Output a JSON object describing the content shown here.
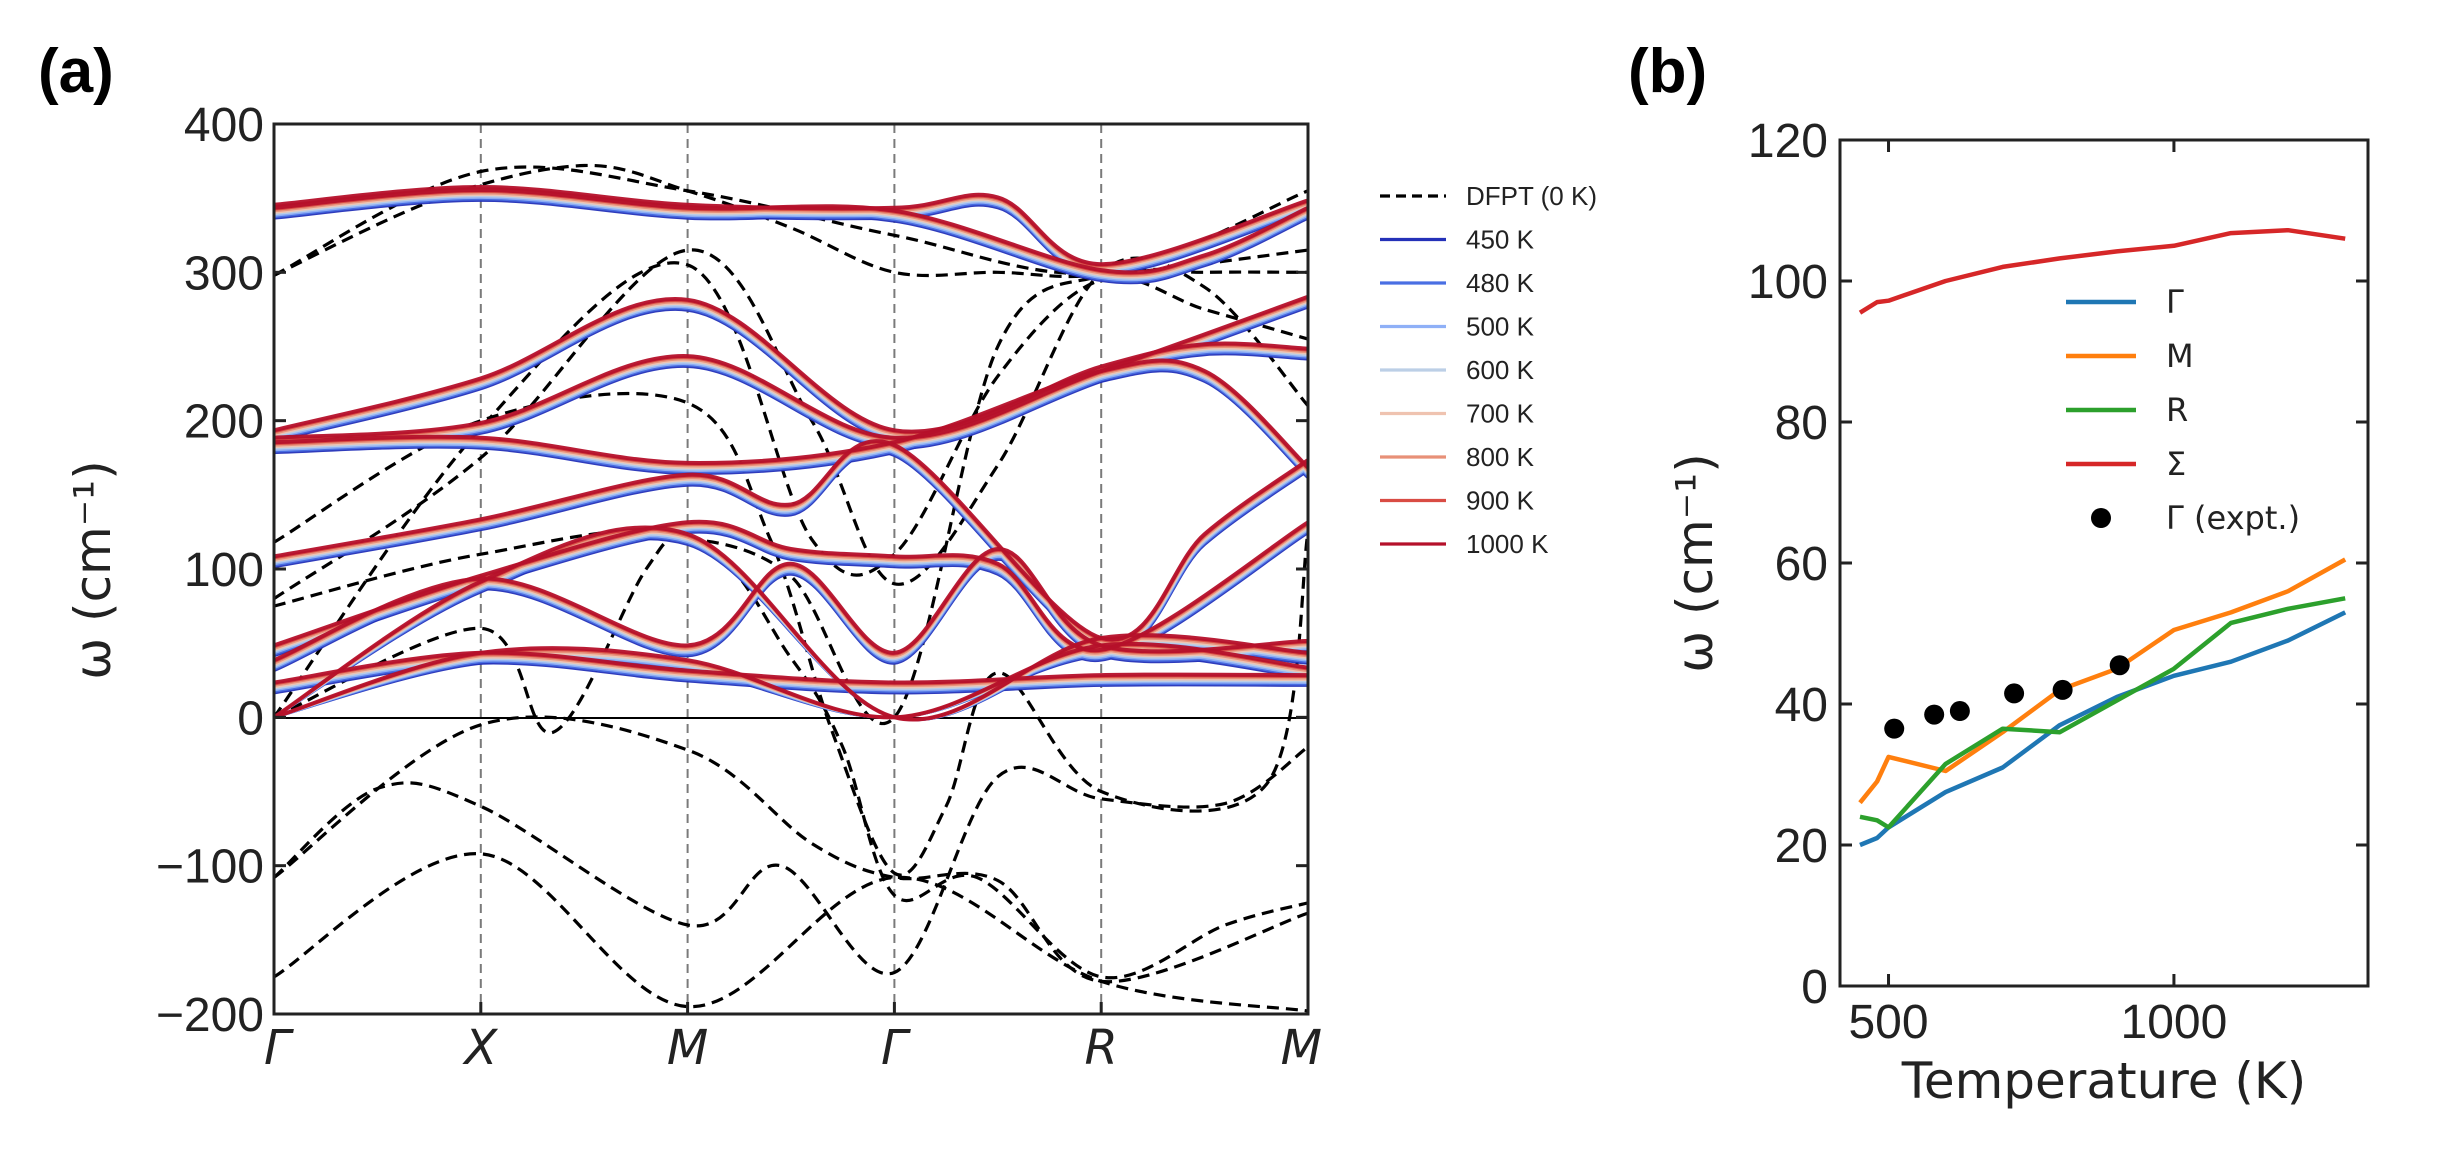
{
  "chart_data": [
    {
      "panel": "(a)",
      "type": "line",
      "title": "",
      "xlabel": "",
      "ylabel": "ω (cm⁻¹)",
      "ylim": [
        -200,
        400
      ],
      "yticks": [
        "400",
        "300",
        "200",
        "100",
        "0",
        "−100",
        "−200"
      ],
      "ytick_values": [
        400,
        300,
        200,
        100,
        0,
        -100,
        -200
      ],
      "path_points": [
        "Γ",
        "X",
        "M",
        "Γ",
        "R",
        "M"
      ],
      "path_positions": [
        0,
        1,
        2,
        3,
        4,
        5
      ],
      "legend": [
        "DFPT (0 K)",
        "450 K",
        "480 K",
        "500 K",
        "600 K",
        "700 K",
        "800 K",
        "900 K",
        "1000 K"
      ],
      "series_colors": [
        "#000000",
        "#2431b8",
        "#4a6fe3",
        "#8fb0f7",
        "#bccfe6",
        "#efc3b0",
        "#e89078",
        "#d94c44",
        "#b5102a"
      ],
      "dfpt_branches": [
        [
          [
            0,
            -175
          ],
          [
            1,
            -92
          ],
          [
            2,
            -195
          ],
          [
            3,
            -108
          ],
          [
            4,
            -178
          ],
          [
            5,
            -198
          ]
        ],
        [
          [
            0,
            -108
          ],
          [
            0.5,
            -48
          ],
          [
            1,
            -60
          ],
          [
            2,
            -140
          ],
          [
            2.45,
            -100
          ],
          [
            3,
            -172
          ],
          [
            3.5,
            -40
          ],
          [
            4,
            -55
          ],
          [
            4.6,
            -58
          ],
          [
            5,
            -20
          ]
        ],
        [
          [
            0,
            -108
          ],
          [
            1,
            -5
          ],
          [
            2,
            -22
          ],
          [
            2.6,
            -85
          ],
          [
            3,
            -108
          ],
          [
            3.5,
            -110
          ],
          [
            4,
            -178
          ],
          [
            5,
            -132
          ]
        ],
        [
          [
            0,
            75
          ],
          [
            1,
            110
          ],
          [
            2,
            122
          ],
          [
            2.5,
            40
          ],
          [
            2.75,
            -20
          ],
          [
            3,
            -120
          ],
          [
            3.4,
            -108
          ],
          [
            4,
            -175
          ],
          [
            4.6,
            -140
          ],
          [
            5,
            -125
          ]
        ],
        [
          [
            0,
            118
          ],
          [
            1,
            200
          ],
          [
            2,
            212
          ],
          [
            2.4,
            120
          ],
          [
            2.7,
            -10
          ],
          [
            3,
            -105
          ],
          [
            3.25,
            -60
          ],
          [
            3.5,
            30
          ],
          [
            4,
            -50
          ],
          [
            4.8,
            -45
          ],
          [
            5,
            125
          ]
        ],
        [
          [
            0,
            0
          ],
          [
            1,
            60
          ],
          [
            1.35,
            -10
          ],
          [
            1.8,
            100
          ],
          [
            2,
            120
          ],
          [
            2.5,
            95
          ],
          [
            3,
            0
          ],
          [
            3.5,
            250
          ],
          [
            4,
            298
          ],
          [
            4.5,
            300
          ],
          [
            5,
            300
          ]
        ],
        [
          [
            0,
            0
          ],
          [
            1,
            195
          ],
          [
            2,
            305
          ],
          [
            2.6,
            120
          ],
          [
            3,
            110
          ],
          [
            3.5,
            230
          ],
          [
            4,
            295
          ],
          [
            4.5,
            275
          ],
          [
            5,
            255
          ]
        ],
        [
          [
            0,
            80
          ],
          [
            1,
            175
          ],
          [
            2,
            315
          ],
          [
            2.6,
            200
          ],
          [
            3,
            90
          ],
          [
            3.5,
            170
          ],
          [
            4,
            300
          ],
          [
            4.5,
            290
          ],
          [
            5,
            210
          ]
        ],
        [
          [
            0,
            298
          ],
          [
            1,
            368
          ],
          [
            2,
            355
          ],
          [
            3,
            325
          ],
          [
            4,
            300
          ],
          [
            5,
            355
          ]
        ],
        [
          [
            0,
            298
          ],
          [
            0.8,
            350
          ],
          [
            1.5,
            372
          ],
          [
            2,
            355
          ],
          [
            2.5,
            330
          ],
          [
            3,
            300
          ],
          [
            3.5,
            300
          ],
          [
            4,
            298
          ],
          [
            5,
            315
          ]
        ]
      ],
      "finite_T_branches": [
        [
          [
            0,
            342
          ],
          [
            1,
            354
          ],
          [
            2,
            342
          ],
          [
            3,
            340
          ],
          [
            3.5,
            347
          ],
          [
            4,
            302
          ],
          [
            5,
            345
          ]
        ],
        [
          [
            0,
            340
          ],
          [
            1,
            352
          ],
          [
            2,
            340
          ],
          [
            3,
            338
          ],
          [
            4,
            298
          ],
          [
            4.5,
            308
          ],
          [
            5,
            340
          ]
        ],
        [
          [
            0,
            190
          ],
          [
            1,
            225
          ],
          [
            2,
            278
          ],
          [
            3,
            190
          ],
          [
            4,
            233
          ],
          [
            4.5,
            248
          ],
          [
            5,
            245
          ]
        ],
        [
          [
            0,
            185
          ],
          [
            1,
            195
          ],
          [
            2,
            240
          ],
          [
            3,
            185
          ],
          [
            4,
            230
          ],
          [
            5,
            280
          ]
        ],
        [
          [
            0,
            182
          ],
          [
            1,
            185
          ],
          [
            2,
            168
          ],
          [
            3,
            182
          ],
          [
            4,
            230
          ],
          [
            4.5,
            230
          ],
          [
            5,
            165
          ]
        ],
        [
          [
            0,
            105
          ],
          [
            1,
            130
          ],
          [
            2,
            160
          ],
          [
            2.5,
            140
          ],
          [
            3,
            180
          ],
          [
            4,
            50
          ],
          [
            4.5,
            120
          ],
          [
            5,
            170
          ]
        ],
        [
          [
            0,
            45
          ],
          [
            1,
            92
          ],
          [
            2,
            128
          ],
          [
            2.5,
            110
          ],
          [
            3,
            105
          ],
          [
            3.5,
            100
          ],
          [
            4,
            42
          ],
          [
            5,
            128
          ]
        ],
        [
          [
            0,
            35
          ],
          [
            1,
            90
          ],
          [
            2,
            45
          ],
          [
            2.5,
            100
          ],
          [
            3,
            40
          ],
          [
            3.5,
            110
          ],
          [
            4,
            45
          ],
          [
            5,
            48
          ]
        ],
        [
          [
            0,
            0
          ],
          [
            1,
            88
          ],
          [
            2,
            120
          ],
          [
            3,
            0
          ],
          [
            4,
            50
          ],
          [
            5,
            40
          ]
        ],
        [
          [
            0,
            0
          ],
          [
            1,
            40
          ],
          [
            2,
            35
          ],
          [
            3,
            0
          ],
          [
            4,
            45
          ],
          [
            5,
            30
          ]
        ],
        [
          [
            0,
            20
          ],
          [
            1,
            40
          ],
          [
            2,
            28
          ],
          [
            3,
            20
          ],
          [
            4,
            25
          ],
          [
            5,
            25
          ]
        ]
      ]
    },
    {
      "panel": "(b)",
      "type": "line",
      "title": "",
      "xlabel": "Temperature (K)",
      "ylabel": "ω (cm⁻¹)",
      "xlim": [
        415,
        1340
      ],
      "ylim": [
        0,
        120
      ],
      "xticks": [
        "500",
        "1000"
      ],
      "xtick_values": [
        500,
        1000
      ],
      "yticks": [
        "120",
        "100",
        "80",
        "60",
        "40",
        "20",
        "0"
      ],
      "ytick_values": [
        120,
        100,
        80,
        60,
        40,
        20,
        0
      ],
      "series": [
        {
          "name": "Γ",
          "color": "#1f77b4",
          "x": [
            450,
            480,
            500,
            600,
            700,
            800,
            900,
            1000,
            1100,
            1200,
            1300
          ],
          "values": [
            20,
            21,
            22.5,
            27.5,
            31,
            37,
            41,
            44,
            46,
            49,
            53
          ]
        },
        {
          "name": "M",
          "color": "#ff7f0e",
          "x": [
            450,
            480,
            500,
            600,
            700,
            800,
            900,
            1000,
            1100,
            1200,
            1300
          ],
          "values": [
            26,
            29,
            32.5,
            30.5,
            36,
            42,
            45,
            50.5,
            53,
            56,
            60.5
          ]
        },
        {
          "name": "R",
          "color": "#2ca02c",
          "x": [
            450,
            480,
            500,
            600,
            700,
            800,
            900,
            1000,
            1100,
            1200,
            1300
          ],
          "values": [
            24,
            23.5,
            22.5,
            31.5,
            36.5,
            36,
            40.5,
            45,
            51.5,
            53.5,
            55
          ]
        },
        {
          "name": "Σ",
          "color": "#d62728",
          "x": [
            450,
            480,
            500,
            600,
            700,
            800,
            900,
            1000,
            1100,
            1200,
            1300
          ],
          "values": [
            95.5,
            97,
            97.2,
            100,
            102,
            103.2,
            104.2,
            105,
            106.8,
            107.2,
            106
          ]
        }
      ],
      "expt": {
        "name": "Γ (expt.)",
        "color": "#000000",
        "x": [
          510,
          580,
          625,
          720,
          805,
          905
        ],
        "values": [
          36.5,
          38.5,
          39,
          41.5,
          42,
          45.5
        ]
      }
    }
  ]
}
